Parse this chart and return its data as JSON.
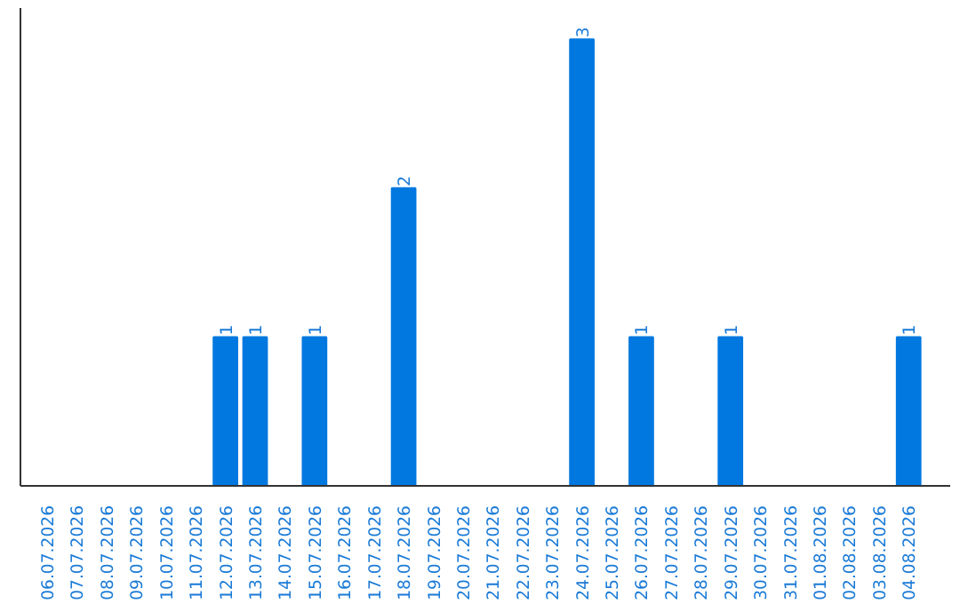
{
  "chart_data": {
    "type": "bar",
    "categories": [
      "06.07.2026",
      "07.07.2026",
      "08.07.2026",
      "09.07.2026",
      "10.07.2026",
      "11.07.2026",
      "12.07.2026",
      "13.07.2026",
      "14.07.2026",
      "15.07.2026",
      "16.07.2026",
      "17.07.2026",
      "18.07.2026",
      "19.07.2026",
      "20.07.2026",
      "21.07.2026",
      "22.07.2026",
      "23.07.2026",
      "24.07.2026",
      "25.07.2026",
      "26.07.2026",
      "27.07.2026",
      "28.07.2026",
      "29.07.2026",
      "30.07.2026",
      "31.07.2026",
      "01.08.2026",
      "02.08.2026",
      "03.08.2026",
      "04.08.2026"
    ],
    "values": [
      0,
      0,
      0,
      0,
      0,
      0,
      1,
      1,
      0,
      1,
      0,
      0,
      2,
      0,
      0,
      0,
      0,
      0,
      3,
      0,
      1,
      0,
      0,
      1,
      0,
      0,
      0,
      0,
      0,
      1
    ],
    "value_labels": [
      null,
      null,
      null,
      null,
      null,
      null,
      "1",
      "1",
      null,
      "1",
      null,
      null,
      "2",
      null,
      null,
      null,
      null,
      null,
      "3",
      null,
      "1",
      null,
      null,
      "1",
      null,
      null,
      null,
      null,
      null,
      "1"
    ],
    "color": "#0078e0",
    "grid": false,
    "tick_labels": "x"
  }
}
